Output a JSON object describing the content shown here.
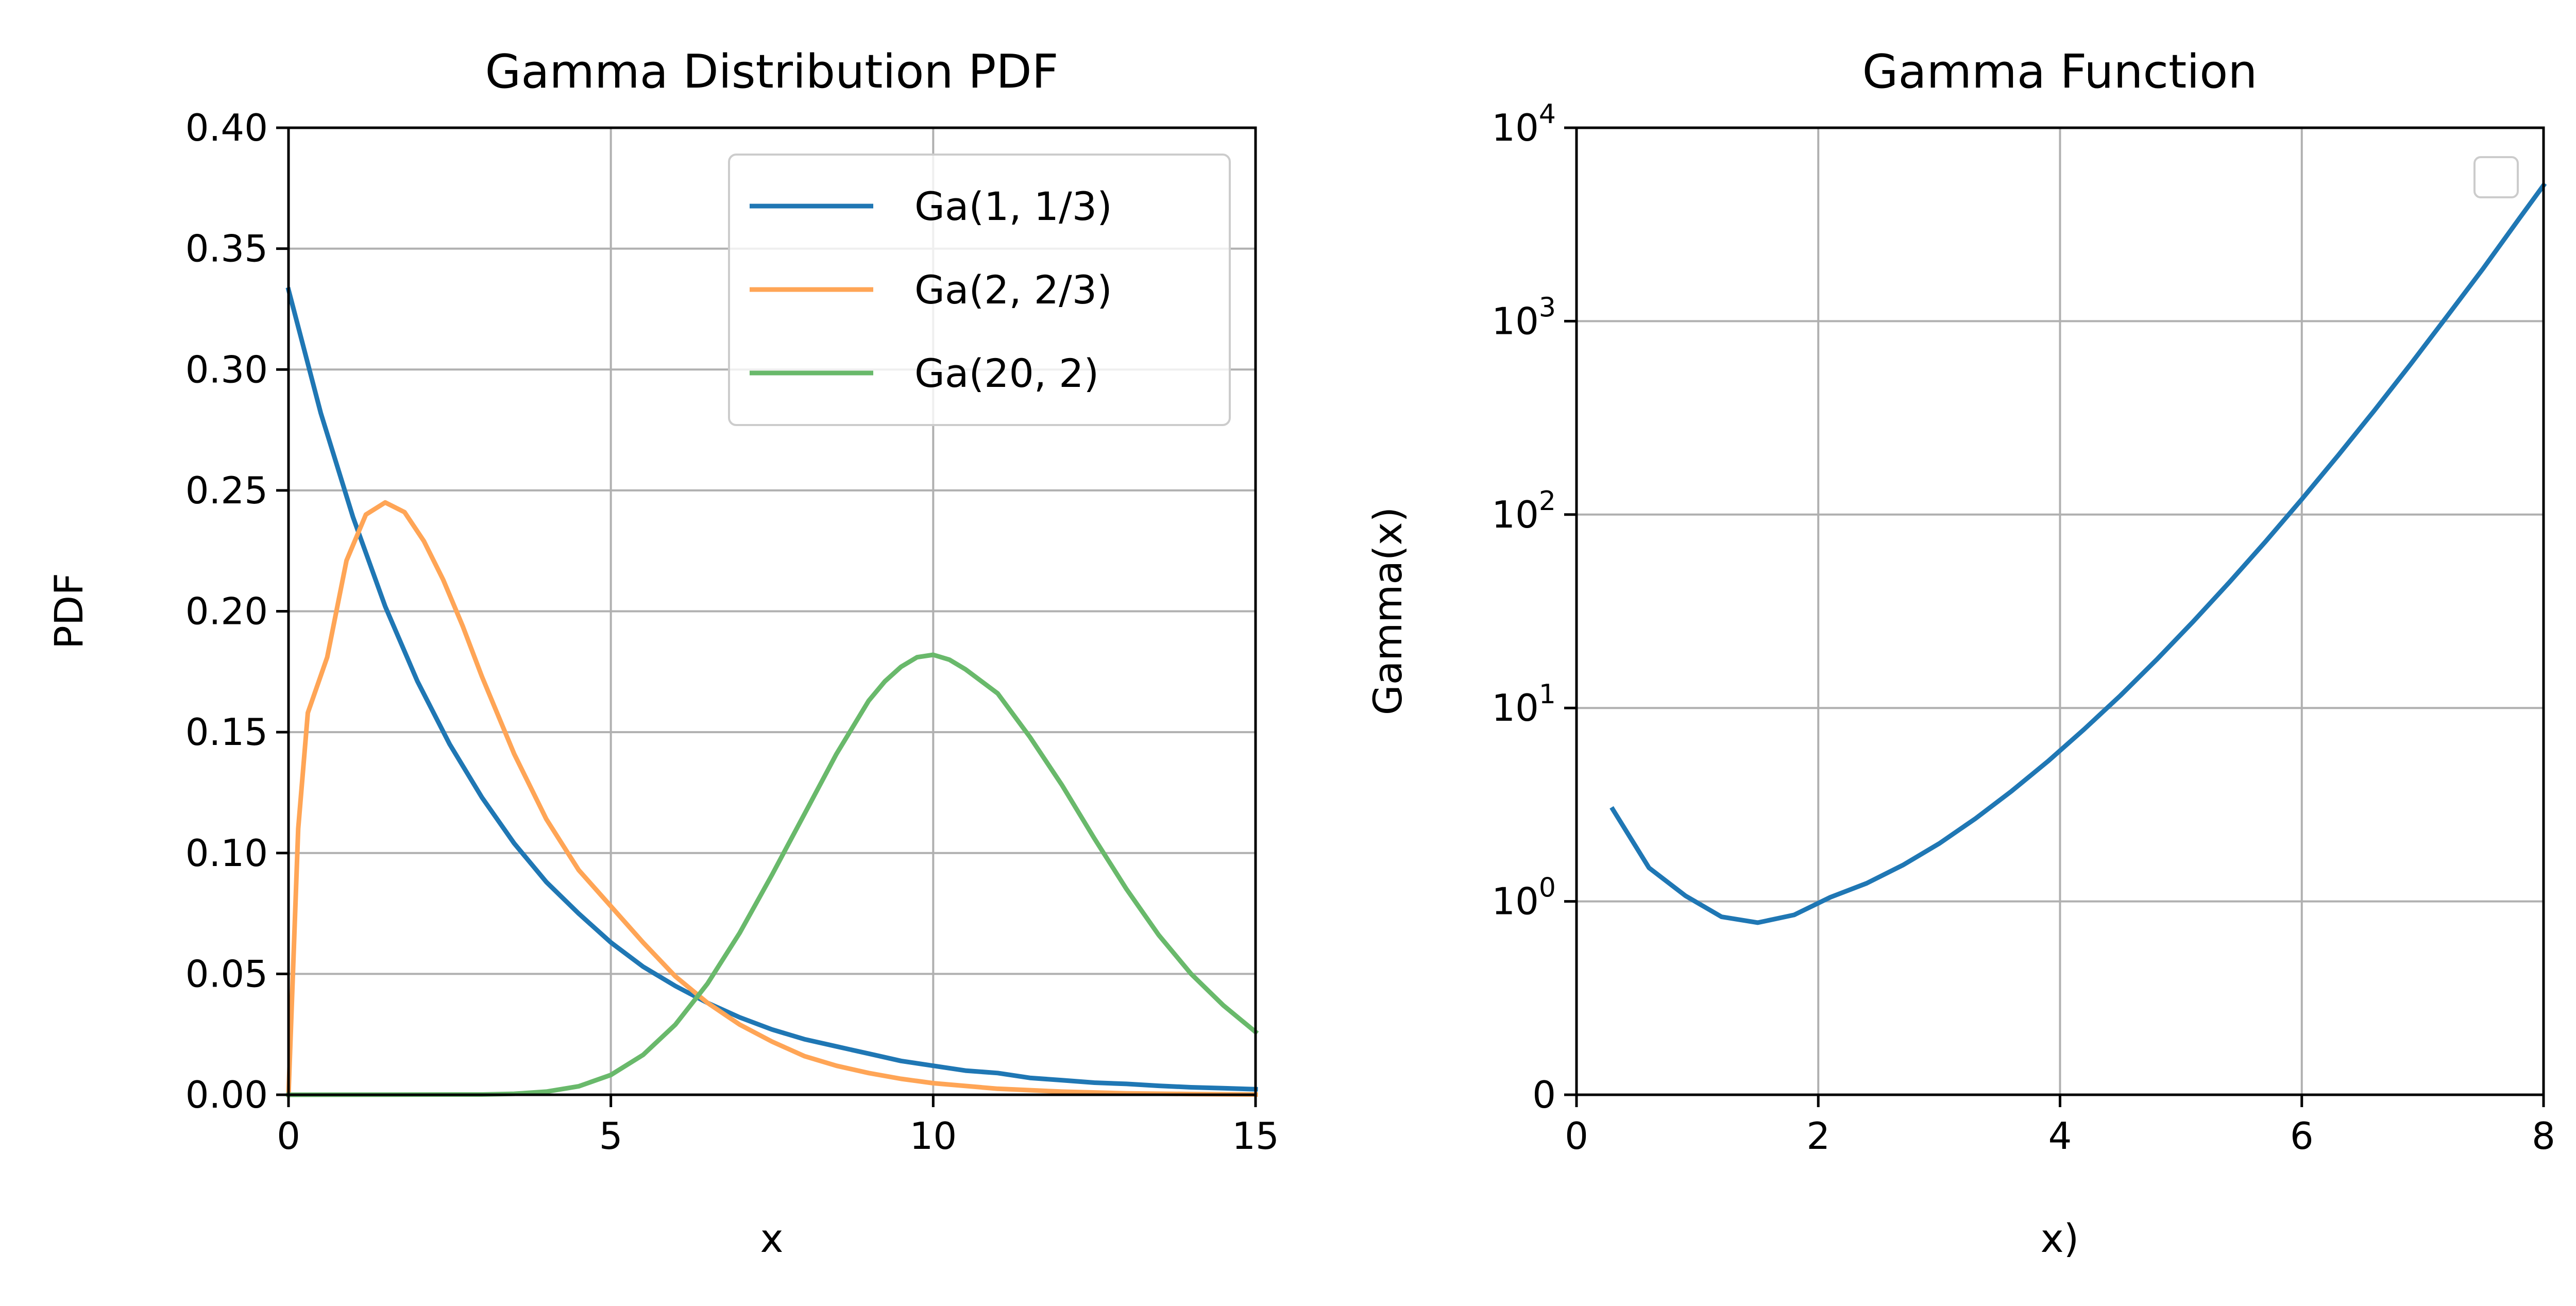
{
  "chart_data": [
    {
      "type": "line",
      "title": "Gamma Distribution PDF",
      "xlabel": "x",
      "ylabel": "PDF",
      "xlim": [
        0,
        15
      ],
      "ylim": [
        0,
        0.4
      ],
      "xticks": [
        0,
        5,
        10,
        15
      ],
      "xtick_labels": [
        "0",
        "5",
        "10",
        "15"
      ],
      "yticks": [
        0,
        0.05,
        0.1,
        0.15,
        0.2,
        0.25,
        0.3,
        0.35,
        0.4
      ],
      "ytick_labels": [
        "0.00",
        "0.05",
        "0.10",
        "0.15",
        "0.20",
        "0.25",
        "0.30",
        "0.35",
        "0.40"
      ],
      "grid": true,
      "legend_position": "top-right",
      "series": [
        {
          "name": "Ga(1, 1/3)",
          "color": "#1f77b4",
          "points": [
            [
              0,
              0.333
            ],
            [
              0.5,
              0.282
            ],
            [
              1,
              0.239
            ],
            [
              1.5,
              0.202
            ],
            [
              2,
              0.171
            ],
            [
              2.5,
              0.145
            ],
            [
              3,
              0.123
            ],
            [
              3.5,
              0.104
            ],
            [
              4,
              0.088
            ],
            [
              4.5,
              0.075
            ],
            [
              5,
              0.063
            ],
            [
              5.5,
              0.053
            ],
            [
              6,
              0.045
            ],
            [
              6.5,
              0.038
            ],
            [
              7,
              0.032
            ],
            [
              7.5,
              0.027
            ],
            [
              8,
              0.023
            ],
            [
              8.5,
              0.02
            ],
            [
              9,
              0.017
            ],
            [
              9.5,
              0.014
            ],
            [
              10,
              0.012
            ],
            [
              10.5,
              0.01
            ],
            [
              11,
              0.009
            ],
            [
              11.5,
              0.007
            ],
            [
              12,
              0.006
            ],
            [
              12.5,
              0.005
            ],
            [
              13,
              0.0045
            ],
            [
              13.5,
              0.0037
            ],
            [
              14,
              0.0031
            ],
            [
              14.5,
              0.0027
            ],
            [
              15,
              0.0023
            ]
          ]
        },
        {
          "name": "Ga(2, 2/3)",
          "color": "#ffa556",
          "points": [
            [
              0,
              0
            ],
            [
              0.15,
              0.11
            ],
            [
              0.3,
              0.158
            ],
            [
              0.6,
              0.181
            ],
            [
              0.9,
              0.221
            ],
            [
              1.2,
              0.24
            ],
            [
              1.5,
              0.245
            ],
            [
              1.8,
              0.241
            ],
            [
              2.1,
              0.229
            ],
            [
              2.4,
              0.213
            ],
            [
              2.7,
              0.194
            ],
            [
              3,
              0.173
            ],
            [
              3.5,
              0.141
            ],
            [
              4,
              0.114
            ],
            [
              4.5,
              0.093
            ],
            [
              5,
              0.078
            ],
            [
              5.5,
              0.063
            ],
            [
              6,
              0.049
            ],
            [
              6.5,
              0.038
            ],
            [
              7,
              0.029
            ],
            [
              7.5,
              0.022
            ],
            [
              8,
              0.016
            ],
            [
              8.5,
              0.012
            ],
            [
              9,
              0.009
            ],
            [
              9.5,
              0.0066
            ],
            [
              10,
              0.0048
            ],
            [
              11,
              0.0025
            ],
            [
              12,
              0.0013
            ],
            [
              13,
              0.0006
            ],
            [
              14,
              0.0003
            ],
            [
              15,
              0.0001
            ]
          ]
        },
        {
          "name": "Ga(20, 2)",
          "color": "#69b96b",
          "points": [
            [
              0,
              0
            ],
            [
              3,
              0.0001
            ],
            [
              3.5,
              0.0004
            ],
            [
              4,
              0.0013
            ],
            [
              4.5,
              0.0035
            ],
            [
              5,
              0.0082
            ],
            [
              5.5,
              0.0165
            ],
            [
              6,
              0.029
            ],
            [
              6.5,
              0.046
            ],
            [
              7,
              0.067
            ],
            [
              7.5,
              0.091
            ],
            [
              8,
              0.116
            ],
            [
              8.5,
              0.141
            ],
            [
              9,
              0.163
            ],
            [
              9.25,
              0.171
            ],
            [
              9.5,
              0.177
            ],
            [
              9.75,
              0.181
            ],
            [
              10,
              0.182
            ],
            [
              10.25,
              0.18
            ],
            [
              10.5,
              0.176
            ],
            [
              11,
              0.166
            ],
            [
              11.5,
              0.148
            ],
            [
              12,
              0.128
            ],
            [
              12.5,
              0.106
            ],
            [
              13,
              0.085
            ],
            [
              13.5,
              0.066
            ],
            [
              14,
              0.05
            ],
            [
              14.5,
              0.037
            ],
            [
              15,
              0.026
            ]
          ]
        }
      ]
    },
    {
      "type": "line",
      "title": "Gamma Function",
      "xlabel": "x)",
      "ylabel": "Gamma(x)",
      "xlim": [
        0,
        8
      ],
      "xticks": [
        0,
        2,
        4,
        6,
        8
      ],
      "xtick_labels": [
        "0",
        "2",
        "4",
        "6",
        "8"
      ],
      "yscale": "symlog",
      "ylim": [
        0,
        10000
      ],
      "yticks": [
        0,
        1,
        10,
        100,
        1000,
        10000
      ],
      "ytick_labels": [
        {
          "base": "0",
          "exp": ""
        },
        {
          "base": "10",
          "exp": "0"
        },
        {
          "base": "10",
          "exp": "1"
        },
        {
          "base": "10",
          "exp": "2"
        },
        {
          "base": "10",
          "exp": "3"
        },
        {
          "base": "10",
          "exp": "4"
        }
      ],
      "grid": true,
      "legend_position": "top-right",
      "legend_empty": true,
      "series": [
        {
          "color": "#1f77b4",
          "points": [
            [
              0.3,
              2.99
            ],
            [
              0.6,
              1.49
            ],
            [
              0.9,
              1.07
            ],
            [
              1.2,
              0.92
            ],
            [
              1.5,
              0.89
            ],
            [
              1.8,
              0.93
            ],
            [
              2.1,
              1.05
            ],
            [
              2.4,
              1.24
            ],
            [
              2.7,
              1.54
            ],
            [
              3,
              1.99
            ],
            [
              3.3,
              2.68
            ],
            [
              3.6,
              3.72
            ],
            [
              3.9,
              5.3
            ],
            [
              4.2,
              7.76
            ],
            [
              4.5,
              11.6
            ],
            [
              4.8,
              17.8
            ],
            [
              5.1,
              27.9
            ],
            [
              5.4,
              44.6
            ],
            [
              5.7,
              72.5
            ],
            [
              6,
              120
            ],
            [
              6.3,
              202
            ],
            [
              6.6,
              345
            ],
            [
              6.9,
              599
            ],
            [
              7.2,
              1056
            ],
            [
              7.5,
              1871
            ],
            [
              7.8,
              3400
            ],
            [
              8,
              5040
            ]
          ]
        }
      ]
    }
  ]
}
